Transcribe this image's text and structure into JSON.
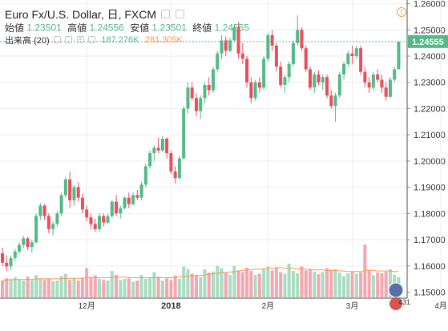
{
  "header": {
    "symbol": "Euro Fx/U.S. Dollar, 日, FXCM",
    "open_label": "始値",
    "open_value": "1.23501",
    "high_label": "高値",
    "high_value": "1.24556",
    "low_label": "安値",
    "low_value": "1.23501",
    "close_label": "終値",
    "close_value": "1.24555",
    "volume_label": "出来高 (20)",
    "volume_value": "187.276K",
    "volume_ma_value": "281.305K",
    "alert_icon": "exclamation-icon",
    "avatar_badge": "431"
  },
  "colors": {
    "up": "#53b987",
    "down": "#eb4d5c",
    "up_vol": "#a9dcc3",
    "down_vol": "#f5a6ae",
    "ma": "#ff9850",
    "last_price": "#53b987"
  },
  "chart_data": {
    "type": "candlestick",
    "title": "Euro Fx/U.S. Dollar, 日, FXCM",
    "price_axis": [
      "1.26000",
      "1.25000",
      "1.24000",
      "1.23000",
      "1.22000",
      "1.21000",
      "1.20000",
      "1.19000",
      "1.18000",
      "1.17000",
      "1.16000",
      "1.15000"
    ],
    "ylim": [
      1.1477,
      1.2614
    ],
    "last_price": "1.24555",
    "time_axis": [
      {
        "index": 20,
        "label": "12月"
      },
      {
        "index": 40,
        "label": "2018"
      },
      {
        "index": 63,
        "label": "2月"
      },
      {
        "index": 83,
        "label": "3月"
      },
      {
        "index": 104,
        "label": "4月"
      }
    ],
    "grid": true,
    "candles": [
      [
        1.1648,
        1.167,
        1.16,
        1.1612
      ],
      [
        1.1612,
        1.164,
        1.158,
        1.1598
      ],
      [
        1.1598,
        1.164,
        1.1585,
        1.163
      ],
      [
        1.163,
        1.1665,
        1.162,
        1.1655
      ],
      [
        1.1655,
        1.169,
        1.1645,
        1.168
      ],
      [
        1.168,
        1.1715,
        1.167,
        1.1705
      ],
      [
        1.1705,
        1.171,
        1.166,
        1.1672
      ],
      [
        1.1672,
        1.17,
        1.165,
        1.169
      ],
      [
        1.169,
        1.18,
        1.1685,
        1.179
      ],
      [
        1.179,
        1.184,
        1.1775,
        1.183
      ],
      [
        1.183,
        1.1835,
        1.1775,
        1.179
      ],
      [
        1.179,
        1.18,
        1.1725,
        1.174
      ],
      [
        1.174,
        1.177,
        1.1715,
        1.176
      ],
      [
        1.176,
        1.181,
        1.175,
        1.18
      ],
      [
        1.18,
        1.188,
        1.179,
        1.187
      ],
      [
        1.187,
        1.194,
        1.186,
        1.193
      ],
      [
        1.193,
        1.196,
        1.182,
        1.185
      ],
      [
        1.185,
        1.191,
        1.183,
        1.19
      ],
      [
        1.19,
        1.192,
        1.1845,
        1.186
      ],
      [
        1.186,
        1.1875,
        1.18,
        1.1815
      ],
      [
        1.1815,
        1.183,
        1.177,
        1.1785
      ],
      [
        1.1785,
        1.18,
        1.174,
        1.176
      ],
      [
        1.176,
        1.178,
        1.173,
        1.174
      ],
      [
        1.174,
        1.18,
        1.173,
        1.179
      ],
      [
        1.179,
        1.18,
        1.175,
        1.1765
      ],
      [
        1.1765,
        1.18,
        1.176,
        1.179
      ],
      [
        1.179,
        1.185,
        1.1785,
        1.1845
      ],
      [
        1.1845,
        1.187,
        1.179,
        1.18
      ],
      [
        1.18,
        1.183,
        1.178,
        1.182
      ],
      [
        1.182,
        1.1865,
        1.1815,
        1.186
      ],
      [
        1.186,
        1.188,
        1.182,
        1.1835
      ],
      [
        1.1835,
        1.188,
        1.183,
        1.187
      ],
      [
        1.187,
        1.189,
        1.185,
        1.186
      ],
      [
        1.186,
        1.192,
        1.185,
        1.191
      ],
      [
        1.191,
        1.199,
        1.19,
        1.198
      ],
      [
        1.198,
        1.204,
        1.197,
        1.203
      ],
      [
        1.203,
        1.206,
        1.2,
        1.205
      ],
      [
        1.205,
        1.209,
        1.203,
        1.204
      ],
      [
        1.204,
        1.2095,
        1.2035,
        1.2085
      ],
      [
        1.2085,
        1.209,
        1.201,
        1.203
      ],
      [
        1.203,
        1.204,
        1.195,
        1.196
      ],
      [
        1.196,
        1.198,
        1.1915,
        1.1935
      ],
      [
        1.1935,
        1.202,
        1.193,
        1.201
      ],
      [
        1.201,
        1.221,
        1.2005,
        1.22
      ],
      [
        1.22,
        1.23,
        1.218,
        1.228
      ],
      [
        1.228,
        1.23,
        1.223,
        1.224
      ],
      [
        1.224,
        1.226,
        1.217,
        1.219
      ],
      [
        1.219,
        1.225,
        1.216,
        1.224
      ],
      [
        1.224,
        1.23,
        1.222,
        1.229
      ],
      [
        1.229,
        1.232,
        1.225,
        1.227
      ],
      [
        1.227,
        1.236,
        1.226,
        1.235
      ],
      [
        1.235,
        1.242,
        1.234,
        1.241
      ],
      [
        1.241,
        1.248,
        1.239,
        1.246
      ],
      [
        1.246,
        1.2475,
        1.24,
        1.242
      ],
      [
        1.242,
        1.247,
        1.2415,
        1.246
      ],
      [
        1.246,
        1.252,
        1.2455,
        1.251
      ],
      [
        1.251,
        1.253,
        1.239,
        1.241
      ],
      [
        1.241,
        1.245,
        1.237,
        1.239
      ],
      [
        1.239,
        1.24,
        1.228,
        1.23
      ],
      [
        1.23,
        1.232,
        1.222,
        1.224
      ],
      [
        1.224,
        1.231,
        1.223,
        1.23
      ],
      [
        1.23,
        1.232,
        1.226,
        1.228
      ],
      [
        1.228,
        1.24,
        1.227,
        1.239
      ],
      [
        1.239,
        1.249,
        1.238,
        1.248
      ],
      [
        1.248,
        1.25,
        1.242,
        1.244
      ],
      [
        1.244,
        1.245,
        1.234,
        1.236
      ],
      [
        1.236,
        1.238,
        1.228,
        1.229
      ],
      [
        1.229,
        1.233,
        1.226,
        1.232
      ],
      [
        1.232,
        1.238,
        1.23,
        1.237
      ],
      [
        1.237,
        1.246,
        1.236,
        1.245
      ],
      [
        1.245,
        1.2555,
        1.244,
        1.25
      ],
      [
        1.25,
        1.251,
        1.242,
        1.243
      ],
      [
        1.243,
        1.244,
        1.234,
        1.235
      ],
      [
        1.235,
        1.236,
        1.227,
        1.228
      ],
      [
        1.228,
        1.234,
        1.226,
        1.233
      ],
      [
        1.233,
        1.2345,
        1.229,
        1.23
      ],
      [
        1.23,
        1.233,
        1.227,
        1.232
      ],
      [
        1.232,
        1.233,
        1.224,
        1.225
      ],
      [
        1.225,
        1.227,
        1.22,
        1.221
      ],
      [
        1.221,
        1.226,
        1.215,
        1.225
      ],
      [
        1.225,
        1.234,
        1.224,
        1.233
      ],
      [
        1.233,
        1.238,
        1.231,
        1.237
      ],
      [
        1.237,
        1.242,
        1.236,
        1.241
      ],
      [
        1.241,
        1.244,
        1.237,
        1.24
      ],
      [
        1.24,
        1.244,
        1.239,
        1.243
      ],
      [
        1.243,
        1.244,
        1.233,
        1.234
      ],
      [
        1.234,
        1.236,
        1.228,
        1.23
      ],
      [
        1.23,
        1.232,
        1.226,
        1.228
      ],
      [
        1.228,
        1.234,
        1.227,
        1.233
      ],
      [
        1.233,
        1.235,
        1.23,
        1.231
      ],
      [
        1.231,
        1.233,
        1.226,
        1.228
      ],
      [
        1.228,
        1.23,
        1.223,
        1.2245
      ],
      [
        1.2245,
        1.232,
        1.224,
        1.231
      ],
      [
        1.231,
        1.236,
        1.23,
        1.235
      ],
      [
        1.235,
        1.2456,
        1.235,
        1.2455
      ]
    ],
    "volume_axis_note": "volume bars with 20-period MA",
    "volume": [
      0.3,
      0.34,
      0.33,
      0.36,
      0.32,
      0.3,
      0.37,
      0.31,
      0.4,
      0.34,
      0.31,
      0.33,
      0.29,
      0.3,
      0.38,
      0.42,
      0.31,
      0.34,
      0.3,
      0.35,
      0.52,
      0.36,
      0.39,
      0.33,
      0.31,
      0.3,
      0.47,
      0.4,
      0.31,
      0.33,
      0.34,
      0.28,
      0.3,
      0.4,
      0.33,
      0.35,
      0.45,
      0.37,
      0.3,
      0.34,
      0.31,
      0.39,
      0.33,
      0.55,
      0.5,
      0.42,
      0.4,
      0.36,
      0.5,
      0.44,
      0.46,
      0.56,
      0.52,
      0.44,
      0.4,
      0.56,
      0.48,
      0.45,
      0.53,
      0.47,
      0.4,
      0.42,
      0.5,
      0.55,
      0.48,
      0.53,
      0.45,
      0.42,
      0.6,
      0.47,
      0.43,
      0.55,
      0.48,
      0.5,
      0.46,
      0.41,
      0.45,
      0.52,
      0.47,
      0.5,
      0.44,
      0.38,
      0.43,
      0.46,
      0.42,
      0.45,
      0.94,
      0.47,
      0.4,
      0.44,
      0.43,
      0.46,
      0.5,
      0.4,
      0.36
    ],
    "volume_ma": [
      0.3,
      0.31,
      0.31,
      0.32,
      0.32,
      0.32,
      0.32,
      0.32,
      0.33,
      0.33,
      0.33,
      0.33,
      0.33,
      0.33,
      0.33,
      0.34,
      0.34,
      0.34,
      0.34,
      0.34,
      0.35,
      0.35,
      0.35,
      0.35,
      0.35,
      0.35,
      0.35,
      0.36,
      0.36,
      0.36,
      0.35,
      0.35,
      0.35,
      0.35,
      0.35,
      0.35,
      0.35,
      0.35,
      0.35,
      0.35,
      0.35,
      0.36,
      0.36,
      0.37,
      0.38,
      0.38,
      0.39,
      0.39,
      0.4,
      0.41,
      0.42,
      0.43,
      0.44,
      0.44,
      0.45,
      0.46,
      0.47,
      0.48,
      0.49,
      0.49,
      0.5,
      0.5,
      0.51,
      0.52,
      0.52,
      0.53,
      0.53,
      0.52,
      0.52,
      0.52,
      0.51,
      0.51,
      0.5,
      0.5,
      0.49,
      0.49,
      0.49,
      0.48,
      0.48,
      0.48,
      0.47,
      0.47,
      0.46,
      0.46,
      0.46,
      0.46,
      0.48,
      0.48,
      0.48,
      0.47,
      0.47,
      0.47,
      0.47,
      0.46,
      0.46
    ]
  }
}
